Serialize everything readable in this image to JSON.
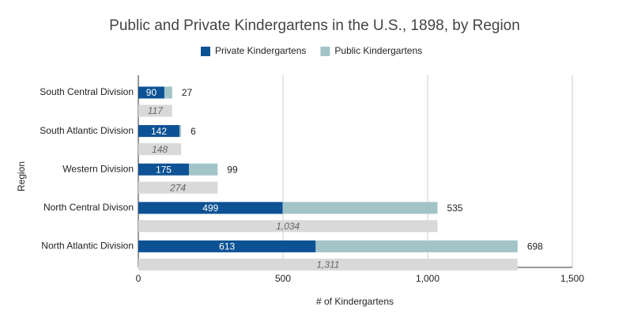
{
  "chart_data": {
    "type": "bar",
    "orientation": "horizontal",
    "stacked": true,
    "title": "Public and Private Kindergartens in the U.S., 1898, by Region",
    "x_label": "# of Kindergartens",
    "y_label": "Region",
    "categories": [
      "South Central Division",
      "South Atlantic Division",
      "Western Division",
      "North Central Divison",
      "North Atlantic Division"
    ],
    "series": [
      {
        "name": "Private Kindergartens",
        "color": "#0d5295",
        "values": [
          90,
          142,
          175,
          499,
          613
        ]
      },
      {
        "name": "Public Kindergartens",
        "color": "#a2c4c9",
        "values": [
          27,
          6,
          99,
          535,
          698
        ]
      }
    ],
    "totals": {
      "color": "#d9d9d9",
      "values": [
        117,
        148,
        274,
        1034,
        1311
      ],
      "value_labels": [
        "117",
        "148",
        "274",
        "1,034",
        "1,311"
      ]
    },
    "xlim": [
      0,
      1500
    ],
    "xticks": [
      0,
      500,
      {
        "value": 1000,
        "label": "1,000"
      },
      {
        "value": 1500,
        "label": "1,500"
      }
    ],
    "grid": true,
    "legend": "top"
  }
}
